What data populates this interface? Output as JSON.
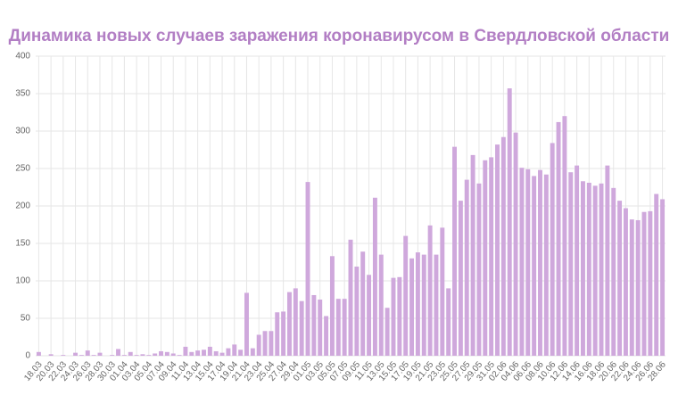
{
  "chart_data": {
    "type": "bar",
    "title": "Динамика новых случаев заражения коронавирусом в Свердловской области",
    "categories": [
      "18.03",
      null,
      "20.03",
      null,
      "22.03",
      null,
      "24.03",
      null,
      "26.03",
      null,
      "28.03",
      null,
      "30.03",
      null,
      "01.04",
      null,
      "03.04",
      null,
      "05.04",
      null,
      "07.04",
      null,
      "09.04",
      null,
      "11.04",
      null,
      "13.04",
      null,
      "15.04",
      null,
      "17.04",
      null,
      "19.04",
      null,
      "21.04",
      null,
      "23.04",
      null,
      "25.04",
      null,
      "27.04",
      null,
      "29.04",
      null,
      "01.05",
      null,
      "03.05",
      null,
      "05.05",
      null,
      "07.05",
      null,
      "09.05",
      null,
      "11.05",
      null,
      "13.05",
      null,
      "15.05",
      null,
      "17.05",
      null,
      "19.05",
      null,
      "21.05",
      null,
      "23.05",
      null,
      "25.05",
      null,
      "27.05",
      null,
      "29.05",
      null,
      "31.05",
      null,
      "02.06",
      null,
      "04.06",
      null,
      "06.06",
      null,
      "08.06",
      null,
      "10.06",
      null,
      "12.06",
      null,
      "14.06",
      null,
      "16.06",
      null,
      "18.06",
      null,
      "20.06",
      null,
      "22.06",
      null,
      "24.06",
      null,
      "26.06",
      null,
      "28.06"
    ],
    "values": [
      5,
      0,
      2,
      0,
      1,
      0,
      4,
      1,
      7,
      1,
      4,
      0,
      1,
      9,
      1,
      5,
      1,
      2,
      1,
      3,
      6,
      5,
      3,
      1,
      12,
      5,
      7,
      8,
      12,
      6,
      4,
      10,
      15,
      8,
      84,
      10,
      28,
      33,
      33,
      58,
      59,
      85,
      90,
      73,
      232,
      81,
      75,
      53,
      133,
      76,
      76,
      155,
      119,
      139,
      108,
      211,
      135,
      64,
      104,
      105,
      160,
      130,
      138,
      135,
      174,
      135,
      171,
      90,
      279,
      207,
      235,
      268,
      230,
      261,
      265,
      282,
      292,
      357,
      298,
      251,
      249,
      240,
      248,
      242,
      284,
      312,
      320,
      245,
      254,
      233,
      231,
      227,
      230,
      254,
      224,
      207,
      197,
      182,
      181,
      192,
      193,
      216,
      209
    ],
    "color": "#cfa8dc",
    "ylim": [
      0,
      400
    ],
    "yticks": [
      0,
      50,
      100,
      150,
      200,
      250,
      300,
      350,
      400
    ],
    "grid": true
  }
}
